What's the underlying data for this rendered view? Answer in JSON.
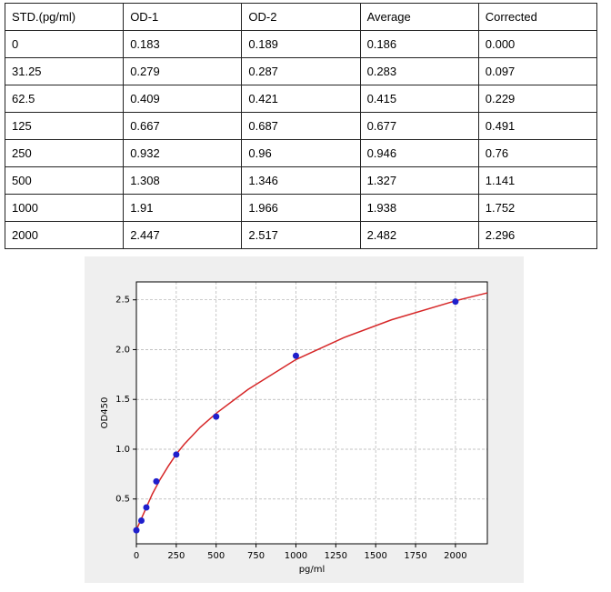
{
  "table": {
    "header": [
      "STD.(pg/ml)",
      "OD-1",
      "OD-2",
      "Average",
      "Corrected"
    ],
    "rows": [
      [
        "0",
        "0.183",
        "0.189",
        "0.186",
        "0.000"
      ],
      [
        "31.25",
        "0.279",
        "0.287",
        "0.283",
        "0.097"
      ],
      [
        "62.5",
        "0.409",
        "0.421",
        "0.415",
        "0.229"
      ],
      [
        "125",
        "0.667",
        "0.687",
        "0.677",
        "0.491"
      ],
      [
        "250",
        "0.932",
        "0.96",
        "0.946",
        "0.76"
      ],
      [
        "500",
        "1.308",
        "1.346",
        "1.327",
        "1.141"
      ],
      [
        "1000",
        "1.91",
        "1.966",
        "1.938",
        "1.752"
      ],
      [
        "2000",
        "2.447",
        "2.517",
        "2.482",
        "2.296"
      ]
    ]
  },
  "chart_data": {
    "type": "scatter",
    "xlabel": "pg/ml",
    "ylabel": "OD450",
    "xlim": [
      0,
      2200
    ],
    "ylim": [
      0.05,
      2.68
    ],
    "xticks": [
      0,
      250,
      500,
      750,
      1000,
      1250,
      1500,
      1750,
      2000
    ],
    "yticks": [
      0.5,
      {
        "value": 1,
        "label": "1.0"
      },
      1.5,
      {
        "value": 2,
        "label": "2.0"
      },
      2.5
    ],
    "grid": true,
    "series": [
      {
        "mode": "markers",
        "color": "#1f1fcc",
        "x": [
          0,
          31.25,
          62.5,
          125,
          250,
          500,
          1000,
          2000
        ],
        "values": [
          0.186,
          0.283,
          0.415,
          0.677,
          0.946,
          1.327,
          1.938,
          2.482
        ]
      },
      {
        "mode": "line",
        "color": "#d62728",
        "x": [
          0,
          50,
          100,
          150,
          200,
          250,
          300,
          400,
          500,
          700,
          1000,
          1300,
          1600,
          2000,
          2200
        ],
        "values": [
          0.19,
          0.37,
          0.55,
          0.7,
          0.83,
          0.95,
          1.05,
          1.22,
          1.36,
          1.6,
          1.9,
          2.12,
          2.3,
          2.49,
          2.57
        ]
      }
    ]
  }
}
